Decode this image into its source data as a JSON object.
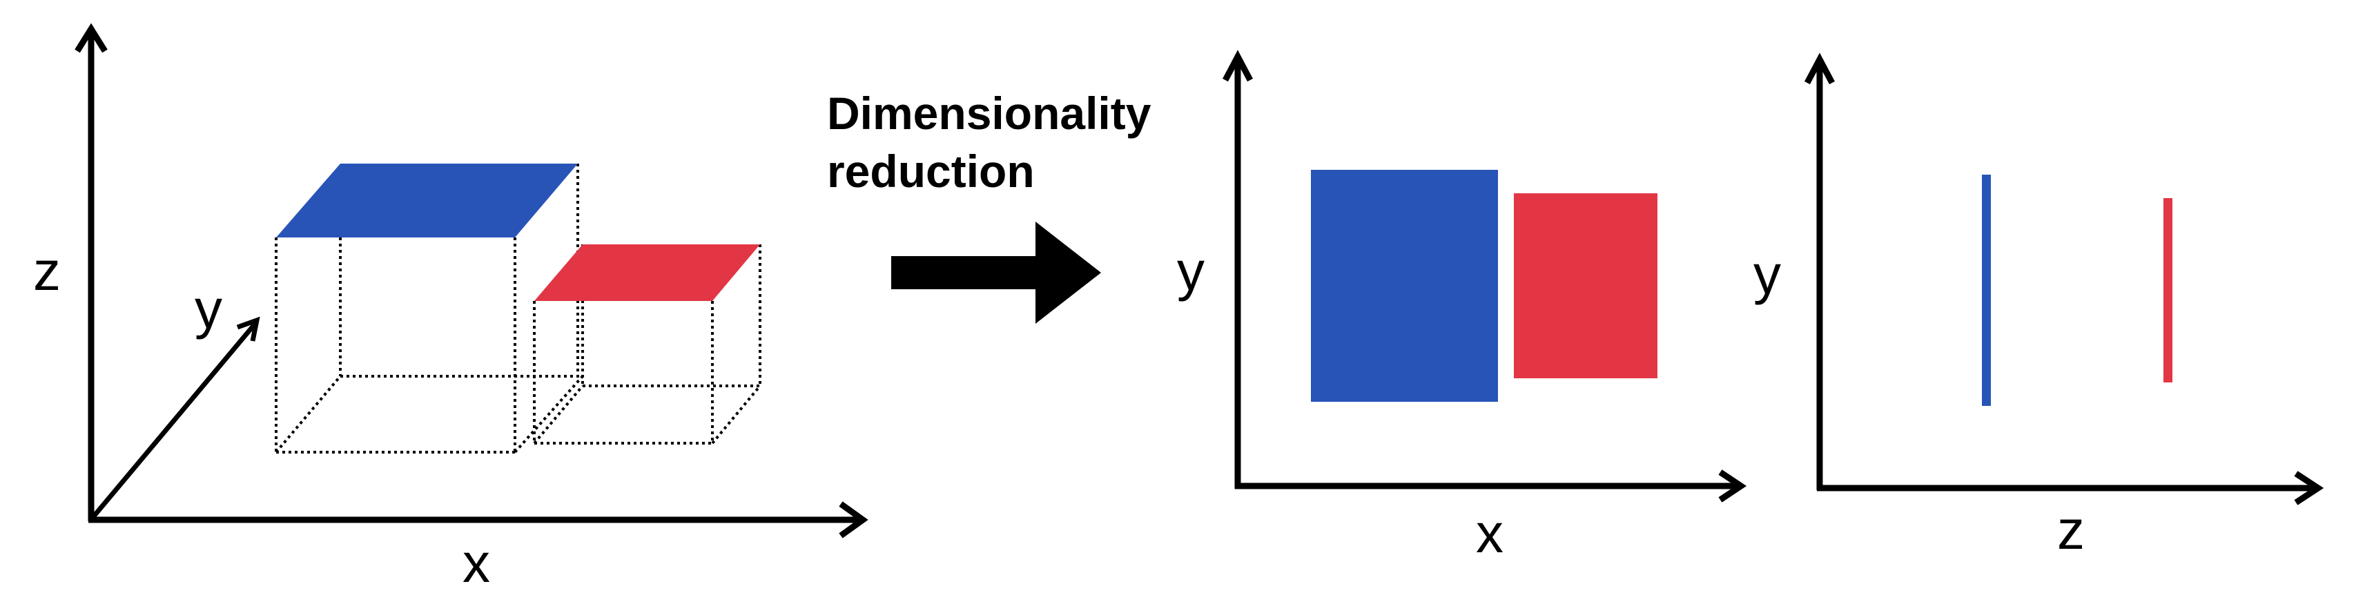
{
  "caption": {
    "line1": "Dimensionality",
    "line2": "reduction"
  },
  "panel_3d": {
    "axis_labels": {
      "x": "x",
      "y": "y",
      "z": "z"
    }
  },
  "panel_xy": {
    "axis_labels": {
      "x": "x",
      "y": "y"
    }
  },
  "panel_zy": {
    "axis_labels": {
      "x": "z",
      "y": "y"
    }
  },
  "colors": {
    "blue": "#2854b8",
    "red": "#e23645",
    "axis": "#000000"
  }
}
